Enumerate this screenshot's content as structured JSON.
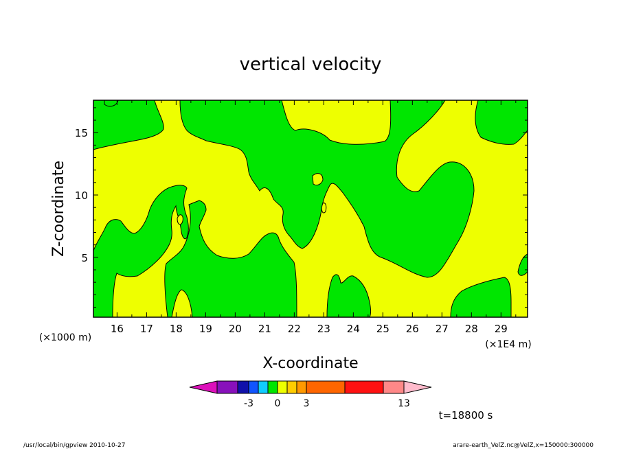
{
  "chart_data": {
    "type": "heatmap",
    "title": "vertical velocity",
    "xlabel": "X-coordinate",
    "ylabel": "Z-coordinate",
    "x_unit_left": "(×1000 m)",
    "x_unit_right": "(×1E4 m)",
    "x_ticks": [
      "16",
      "17",
      "18",
      "19",
      "20",
      "21",
      "22",
      "23",
      "24",
      "25",
      "26",
      "27",
      "28",
      "29"
    ],
    "y_ticks": [
      "5",
      "10",
      "15"
    ],
    "xlim": [
      15.2,
      29.9
    ],
    "ylim": [
      0.2,
      17.6
    ],
    "fill_levels": [
      {
        "range": "< 0",
        "color": "#00e600"
      },
      {
        "range": "0 to 1",
        "color": "#eeff00"
      }
    ],
    "colorbar": {
      "colors": [
        "#dd11bb",
        "#8811bb",
        "#1111aa",
        "#1155ff",
        "#11ccff",
        "#00e600",
        "#eeff00",
        "#ffcc00",
        "#ff9900",
        "#ff6600",
        "#ff1111",
        "#ff8888",
        "#ffbbcc"
      ],
      "labels": [
        "-3",
        "0",
        "3",
        "13"
      ]
    },
    "time_label": "t=18800 s",
    "footer_left": "/usr/local/bin/gpview  2010-10-27",
    "footer_right": "arare-earth_VelZ.nc@VelZ,x=150000:300000"
  }
}
